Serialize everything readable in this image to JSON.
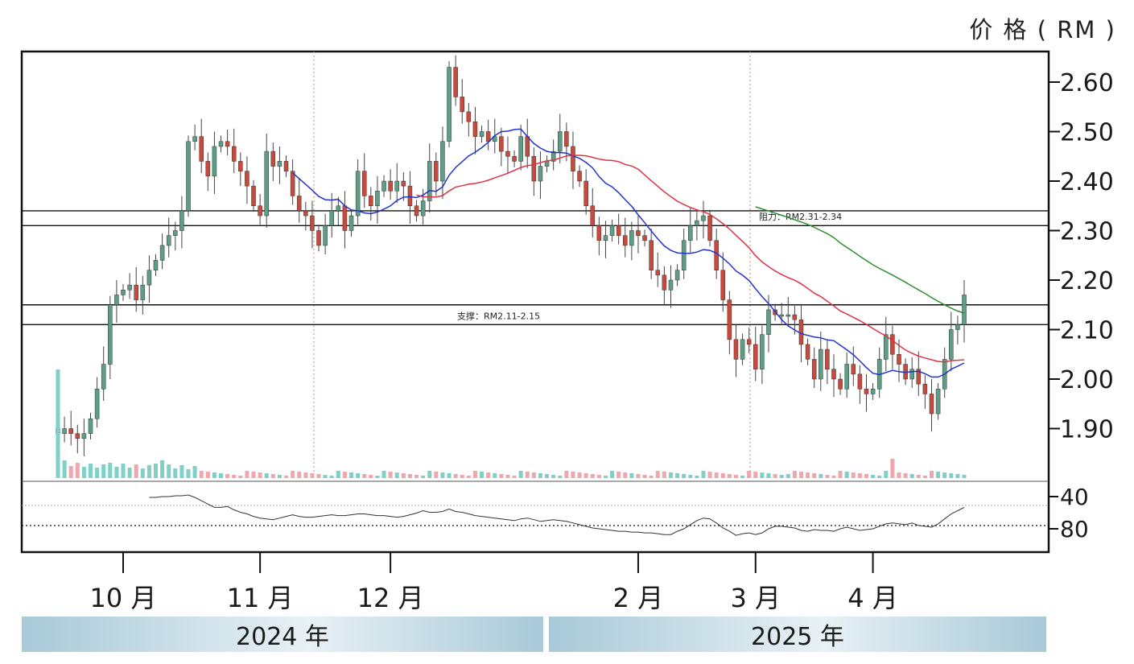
{
  "unit_label": "价 格 ( RM )",
  "years": [
    "2024 年",
    "2025 年"
  ],
  "months": [
    "10 月",
    "11 月",
    "12 月",
    "2 月",
    "3 月",
    "4 月"
  ],
  "annotations": {
    "resistance": "阻力：RM2.31-2.34",
    "support": "支撑：RM2.11-2.15"
  },
  "colors": {
    "up": "#5f9e86",
    "down": "#c84a3c",
    "ma_short": "#2233cc",
    "ma_mid": "#dd3344",
    "ma_long": "#2f8f2f",
    "vol_up": "#7fd0c6",
    "vol_down": "#f0a6ae"
  },
  "chart_data": {
    "type": "candlestick",
    "ylim": [
      1.82,
      2.66
    ],
    "yticks": [
      1.9,
      2.0,
      2.1,
      2.2,
      2.3,
      2.4,
      2.5,
      2.6
    ],
    "ytick_labels": [
      "1.90",
      "2.00",
      "2.10",
      "2.20",
      "2.30",
      "2.40",
      "2.50",
      "2.60"
    ],
    "rsi_ticks": [
      40,
      80
    ],
    "rsi_tick_labels": [
      "40",
      "80"
    ],
    "month_index": [
      10,
      31,
      51,
      89,
      107,
      125
    ],
    "resistance_zone": [
      2.31,
      2.34
    ],
    "support_zone": [
      2.11,
      2.15
    ],
    "closes": [
      1.89,
      1.9,
      1.89,
      1.88,
      1.89,
      1.92,
      1.98,
      2.03,
      2.15,
      2.17,
      2.18,
      2.19,
      2.16,
      2.19,
      2.22,
      2.24,
      2.27,
      2.29,
      2.3,
      2.34,
      2.48,
      2.49,
      2.44,
      2.41,
      2.47,
      2.48,
      2.47,
      2.44,
      2.42,
      2.39,
      2.35,
      2.33,
      2.46,
      2.43,
      2.44,
      2.42,
      2.37,
      2.34,
      2.33,
      2.3,
      2.27,
      2.31,
      2.34,
      2.35,
      2.3,
      2.33,
      2.42,
      2.37,
      2.35,
      2.38,
      2.4,
      2.38,
      2.4,
      2.39,
      2.35,
      2.33,
      2.36,
      2.44,
      2.4,
      2.48,
      2.63,
      2.57,
      2.54,
      2.52,
      2.49,
      2.5,
      2.48,
      2.49,
      2.46,
      2.45,
      2.44,
      2.49,
      2.45,
      2.4,
      2.43,
      2.44,
      2.46,
      2.5,
      2.47,
      2.42,
      2.4,
      2.35,
      2.31,
      2.28,
      2.29,
      2.31,
      2.29,
      2.27,
      2.3,
      2.29,
      2.28,
      2.22,
      2.21,
      2.18,
      2.2,
      2.22,
      2.28,
      2.31,
      2.32,
      2.33,
      2.28,
      2.22,
      2.16,
      2.08,
      2.04,
      2.08,
      2.07,
      2.02,
      2.09,
      2.14,
      2.13,
      2.13,
      2.13,
      2.12,
      2.07,
      2.04,
      2.0,
      2.06,
      2.02,
      2.0,
      1.98,
      2.03,
      2.01,
      1.98,
      1.97,
      1.98,
      2.04,
      2.09,
      2.05,
      2.03,
      2.0,
      2.02,
      1.99,
      1.97,
      1.93,
      1.98,
      2.04,
      2.1,
      2.11,
      2.17
    ],
    "rsi": [
      null,
      null,
      null,
      null,
      null,
      null,
      null,
      null,
      null,
      null,
      null,
      null,
      null,
      null,
      78,
      78,
      79,
      79,
      80,
      80,
      81,
      78,
      74,
      70,
      66,
      66,
      67,
      63,
      60,
      58,
      55,
      53,
      52,
      51,
      53,
      55,
      57,
      55,
      54,
      54,
      55,
      56,
      57,
      56,
      56,
      57,
      58,
      58,
      57,
      56,
      56,
      55,
      54,
      55,
      57,
      59,
      62,
      60,
      60,
      61,
      64,
      61,
      60,
      58,
      56,
      55,
      54,
      53,
      52,
      51,
      50,
      52,
      53,
      51,
      49,
      50,
      51,
      50,
      49,
      47,
      45,
      43,
      41,
      40,
      39,
      38,
      37,
      37,
      36,
      36,
      35,
      35,
      34,
      33,
      33,
      37,
      40,
      45,
      50,
      53,
      52,
      47,
      41,
      37,
      32,
      34,
      35,
      33,
      35,
      40,
      43,
      43,
      42,
      41,
      38,
      37,
      39,
      38,
      38,
      37,
      40,
      42,
      40,
      38,
      39,
      40,
      43,
      46,
      47,
      46,
      45,
      47,
      44,
      43,
      42,
      46,
      52,
      58,
      62,
      66
    ],
    "ma_short_start": 36,
    "ma_mid_start": 95,
    "ma_long_start": 117
  }
}
